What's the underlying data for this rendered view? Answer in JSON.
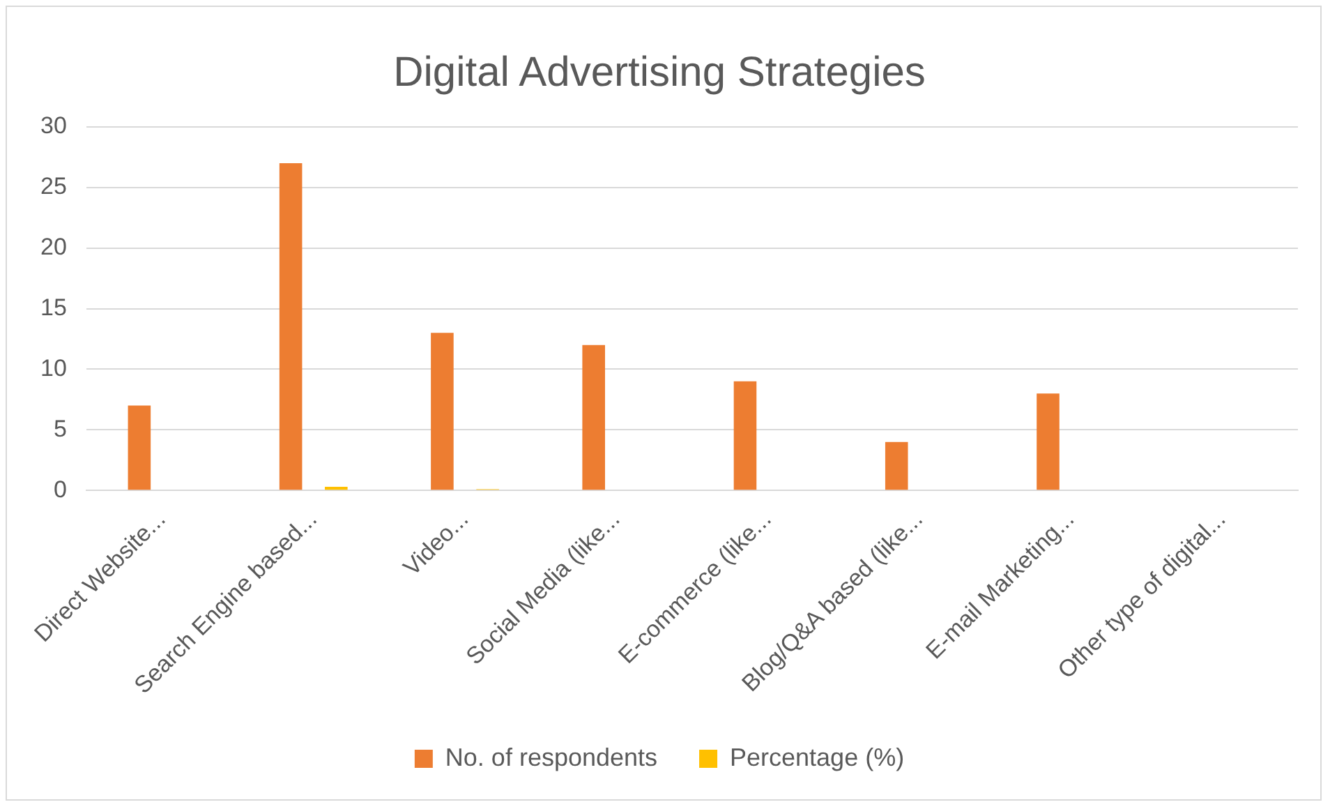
{
  "chart_data": {
    "type": "bar",
    "title": "Digital Advertising Strategies",
    "categories": [
      "Direct Website...",
      "Search Engine based...",
      "Video...",
      "Social Media (like...",
      "E-commerce (like...",
      "Blog/Q&A based (like...",
      "E-mail Marketing...",
      "Other type of digital..."
    ],
    "series": [
      {
        "name": "No. of respondents",
        "color": "#ed7d31",
        "values": [
          7,
          27,
          13,
          12,
          9,
          4,
          8,
          0
        ]
      },
      {
        "name": "Percentage (%)",
        "color": "#ffc000",
        "values": [
          null,
          0.3,
          0.1,
          null,
          null,
          null,
          null,
          null
        ]
      }
    ],
    "ylim": [
      0,
      30
    ],
    "yticks": [
      0,
      5,
      10,
      15,
      20,
      25,
      30
    ],
    "grid": "y",
    "legend": "bottom"
  }
}
